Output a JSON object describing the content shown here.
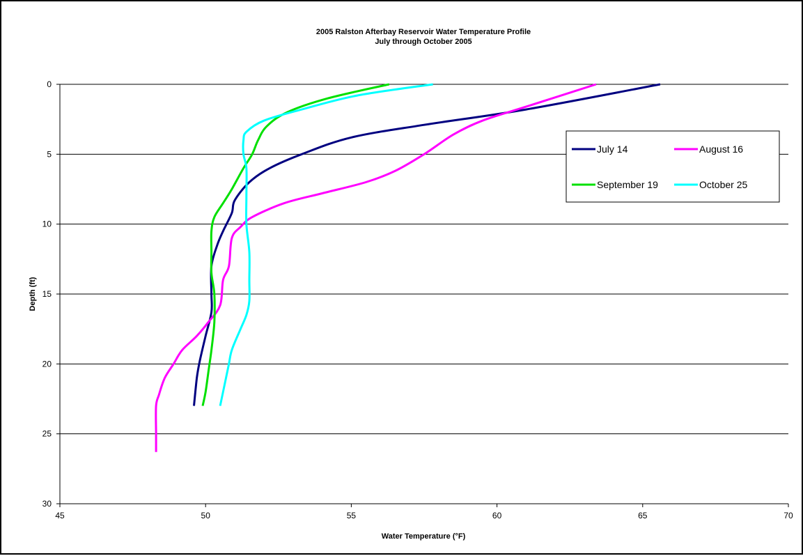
{
  "chart_data": {
    "type": "line",
    "title": "2005 Ralston Afterbay Reservoir Water Temperature Profile",
    "subtitle": "July through October 2005",
    "xlabel": "Water Temperature (°F)",
    "ylabel": "Depth (ft)",
    "xlim": [
      45,
      70
    ],
    "ylim": [
      0,
      30
    ],
    "y_inverted": true,
    "x_ticks": [
      45,
      50,
      55,
      60,
      65,
      70
    ],
    "y_ticks": [
      0,
      5,
      10,
      15,
      20,
      25,
      30
    ],
    "grid": "horizontal",
    "legend_position": "right",
    "series": [
      {
        "name": "July 14",
        "color": "#000080",
        "points": [
          [
            65.6,
            0
          ],
          [
            61.0,
            1.8
          ],
          [
            57.5,
            2.9
          ],
          [
            55.0,
            3.8
          ],
          [
            53.3,
            5.0
          ],
          [
            52.2,
            6.0
          ],
          [
            51.5,
            7.0
          ],
          [
            51.0,
            8.3
          ],
          [
            50.9,
            9.2
          ],
          [
            50.6,
            10.5
          ],
          [
            50.4,
            11.5
          ],
          [
            50.2,
            13.0
          ],
          [
            50.2,
            15.0
          ],
          [
            50.2,
            16.3
          ],
          [
            50.0,
            18.0
          ],
          [
            49.8,
            19.8
          ],
          [
            49.7,
            21.0
          ],
          [
            49.6,
            23.0
          ]
        ]
      },
      {
        "name": "August 16",
        "color": "#FF00FF",
        "points": [
          [
            63.4,
            0
          ],
          [
            61.0,
            1.6
          ],
          [
            59.5,
            2.6
          ],
          [
            58.5,
            3.6
          ],
          [
            57.5,
            5.0
          ],
          [
            56.5,
            6.2
          ],
          [
            55.5,
            7.0
          ],
          [
            54.0,
            7.8
          ],
          [
            52.7,
            8.5
          ],
          [
            51.6,
            9.5
          ],
          [
            51.2,
            10.2
          ],
          [
            50.9,
            11.0
          ],
          [
            50.8,
            13.0
          ],
          [
            50.6,
            14.0
          ],
          [
            50.5,
            15.8
          ],
          [
            50.1,
            17.0
          ],
          [
            49.7,
            18.0
          ],
          [
            49.2,
            19.0
          ],
          [
            48.9,
            20.0
          ],
          [
            48.6,
            21.0
          ],
          [
            48.4,
            22.2
          ],
          [
            48.3,
            23.0
          ],
          [
            48.3,
            25.0
          ],
          [
            48.3,
            26.3
          ]
        ]
      },
      {
        "name": "September 19",
        "color": "#00E000",
        "points": [
          [
            56.3,
            0
          ],
          [
            54.2,
            1.0
          ],
          [
            52.8,
            2.0
          ],
          [
            52.1,
            3.0
          ],
          [
            51.8,
            4.0
          ],
          [
            51.6,
            5.0
          ],
          [
            51.3,
            6.0
          ],
          [
            50.9,
            7.5
          ],
          [
            50.6,
            8.5
          ],
          [
            50.3,
            9.5
          ],
          [
            50.2,
            10.5
          ],
          [
            50.2,
            12.0
          ],
          [
            50.2,
            13.5
          ],
          [
            50.3,
            15.0
          ],
          [
            50.3,
            17.0
          ],
          [
            50.2,
            19.0
          ],
          [
            50.1,
            20.5
          ],
          [
            50.0,
            22.0
          ],
          [
            49.9,
            23.0
          ]
        ]
      },
      {
        "name": "October 25",
        "color": "#00FFFF",
        "points": [
          [
            57.8,
            0
          ],
          [
            55.2,
            0.8
          ],
          [
            53.3,
            1.8
          ],
          [
            52.0,
            2.6
          ],
          [
            51.4,
            3.4
          ],
          [
            51.3,
            4.0
          ],
          [
            51.3,
            5.0
          ],
          [
            51.4,
            6.0
          ],
          [
            51.4,
            8.0
          ],
          [
            51.4,
            10.0
          ],
          [
            51.5,
            12.0
          ],
          [
            51.5,
            14.0
          ],
          [
            51.5,
            15.5
          ],
          [
            51.4,
            16.5
          ],
          [
            51.2,
            17.5
          ],
          [
            50.9,
            19.0
          ],
          [
            50.8,
            20.0
          ],
          [
            50.7,
            21.0
          ],
          [
            50.6,
            22.0
          ],
          [
            50.5,
            23.0
          ]
        ]
      }
    ]
  }
}
